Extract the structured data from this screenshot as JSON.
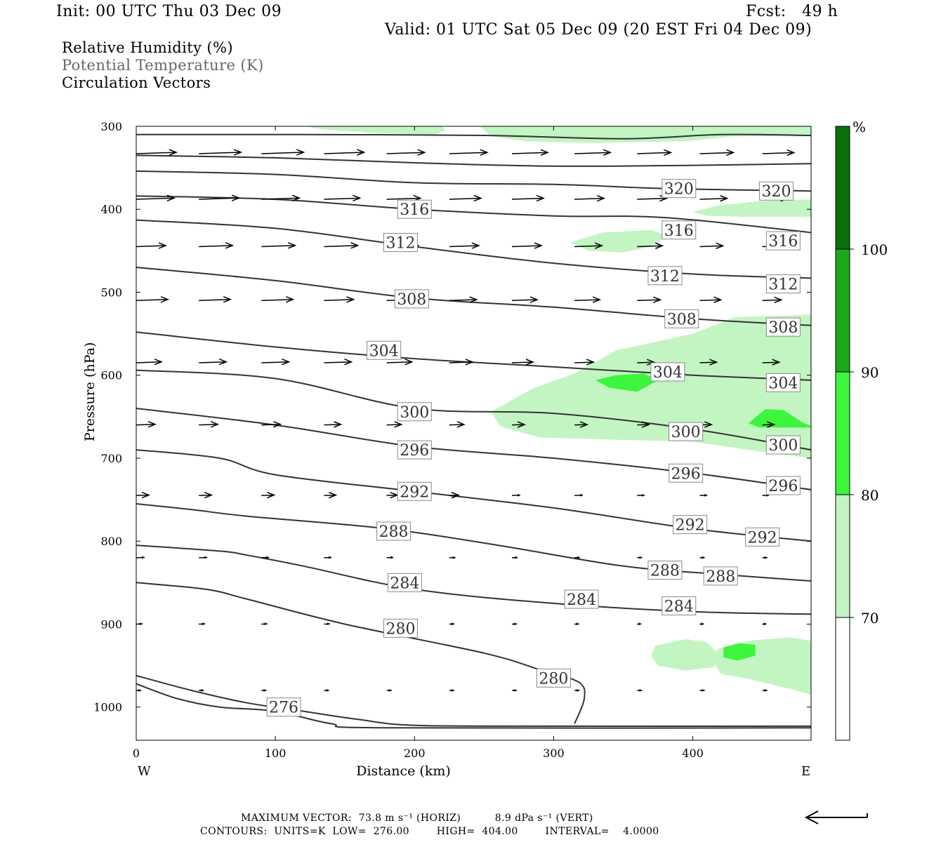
{
  "header": {
    "init": "Init: 00 UTC Thu 03 Dec 09",
    "fcst": "Fcst:   49 h",
    "valid": "Valid: 01 UTC Sat 05 Dec 09 (20 EST Fri 04 Dec 09)"
  },
  "legend": {
    "rh": "Relative Humidity (%)",
    "theta": "Potential Temperature (K)",
    "vectors": "Circulation Vectors"
  },
  "footer": {
    "line1": "MAXIMUM VECTOR:  73.8 m s⁻¹ (HORIZ)          8.9 dPa s⁻¹ (VERT)",
    "line2": "CONTOURS:  UNITS=K  LOW=  276.00        HIGH=  404.00        INTERVAL=    4.0000"
  },
  "colors": {
    "rh_70_80": "#c2f5c2",
    "rh_80_90": "#3df53d",
    "rh_90_100": "#1aa81a",
    "rh_100": "#0a700a",
    "contour": "#333333",
    "label_box": "#888888"
  },
  "chart_data": {
    "type": "contour",
    "xlabel": "Distance (km)",
    "ylabel": "Pressure (hPa)",
    "xlim": [
      0,
      485
    ],
    "ylim": [
      1040,
      300
    ],
    "x_ticks": [
      "0",
      "100",
      "200",
      "300",
      "400"
    ],
    "y_ticks": [
      "300",
      "400",
      "500",
      "600",
      "700",
      "800",
      "900",
      "1000"
    ],
    "x_end_labels": {
      "left": "W",
      "right": "E"
    },
    "colorbar": {
      "unit": "%",
      "levels": [
        "70",
        "80",
        "90",
        "100"
      ],
      "bands": [
        {
          "from": 60,
          "to": 70,
          "color": "#ffffff"
        },
        {
          "from": 70,
          "to": 80,
          "color": "#c2f5c2"
        },
        {
          "from": 80,
          "to": 90,
          "color": "#3df53d"
        },
        {
          "from": 90,
          "to": 100,
          "color": "#1aa81a"
        },
        {
          "from": 100,
          "to": 110,
          "color": "#0a700a"
        }
      ]
    },
    "rh_regions": [
      {
        "level": 70,
        "pts": [
          [
            123,
            300
          ],
          [
            220,
            300
          ],
          [
            222,
            305
          ],
          [
            215,
            310
          ],
          [
            170,
            308
          ],
          [
            130,
            303
          ]
        ]
      },
      {
        "level": 70,
        "pts": [
          [
            247,
            300
          ],
          [
            485,
            300
          ],
          [
            485,
            312
          ],
          [
            430,
            312
          ],
          [
            395,
            318
          ],
          [
            330,
            320
          ],
          [
            280,
            318
          ],
          [
            255,
            312
          ]
        ]
      },
      {
        "level": 70,
        "pts": [
          [
            400,
            403
          ],
          [
            420,
            395
          ],
          [
            450,
            390
          ],
          [
            485,
            388
          ],
          [
            485,
            409
          ],
          [
            440,
            409
          ],
          [
            410,
            408
          ]
        ]
      },
      {
        "level": 70,
        "pts": [
          [
            312,
            440
          ],
          [
            335,
            428
          ],
          [
            370,
            425
          ],
          [
            382,
            432
          ],
          [
            370,
            445
          ],
          [
            350,
            452
          ],
          [
            325,
            450
          ]
        ]
      },
      {
        "level": 70,
        "pts": [
          [
            255,
            644
          ],
          [
            285,
            616
          ],
          [
            315,
            598
          ],
          [
            345,
            570
          ],
          [
            400,
            550
          ],
          [
            430,
            530
          ],
          [
            485,
            527
          ],
          [
            485,
            700
          ],
          [
            440,
            690
          ],
          [
            400,
            680
          ],
          [
            350,
            678
          ],
          [
            290,
            675
          ],
          [
            262,
            662
          ]
        ]
      },
      {
        "level": 80,
        "pts": [
          [
            330,
            606
          ],
          [
            345,
            600
          ],
          [
            365,
            598
          ],
          [
            375,
            606
          ],
          [
            360,
            620
          ],
          [
            340,
            615
          ]
        ]
      },
      {
        "level": 80,
        "pts": [
          [
            440,
            658
          ],
          [
            452,
            641
          ],
          [
            465,
            642
          ],
          [
            480,
            658
          ],
          [
            485,
            661
          ],
          [
            485,
            663
          ],
          [
            448,
            663
          ]
        ]
      },
      {
        "level": 70,
        "pts": [
          [
            373,
            926
          ],
          [
            395,
            918
          ],
          [
            410,
            922
          ],
          [
            420,
            938
          ],
          [
            415,
            952
          ],
          [
            395,
            956
          ],
          [
            375,
            950
          ],
          [
            370,
            938
          ]
        ]
      },
      {
        "level": 70,
        "pts": [
          [
            418,
            930
          ],
          [
            440,
            920
          ],
          [
            470,
            916
          ],
          [
            485,
            920
          ],
          [
            485,
            985
          ],
          [
            470,
            978
          ],
          [
            440,
            966
          ],
          [
            420,
            960
          ],
          [
            415,
            945
          ]
        ]
      },
      {
        "level": 80,
        "pts": [
          [
            422,
            928
          ],
          [
            433,
            923
          ],
          [
            445,
            925
          ],
          [
            445,
            938
          ],
          [
            432,
            944
          ],
          [
            422,
            940
          ]
        ]
      }
    ],
    "theta_isolines": [
      {
        "value": 320,
        "pts": [
          [
            0,
            310
          ],
          [
            120,
            310
          ],
          [
            250,
            311
          ],
          [
            350,
            315
          ],
          [
            420,
            310
          ],
          [
            485,
            311
          ]
        ]
      },
      {
        "value": 320,
        "pts": [
          [
            0,
            335
          ],
          [
            100,
            338
          ],
          [
            200,
            344
          ],
          [
            300,
            348
          ],
          [
            400,
            347
          ],
          [
            485,
            345
          ]
        ]
      },
      {
        "value": 320,
        "pts": [
          [
            0,
            354
          ],
          [
            100,
            358
          ],
          [
            200,
            368
          ],
          [
            300,
            370
          ],
          [
            380,
            375
          ],
          [
            485,
            378
          ]
        ],
        "labels": [
          [
            390,
            375
          ],
          [
            460,
            378
          ]
        ]
      },
      {
        "value": 316,
        "pts": [
          [
            0,
            384
          ],
          [
            100,
            388
          ],
          [
            200,
            400
          ],
          [
            300,
            408
          ],
          [
            380,
            410
          ],
          [
            485,
            428
          ]
        ],
        "labels": [
          [
            200,
            400
          ],
          [
            390,
            425
          ],
          [
            465,
            438
          ]
        ]
      },
      {
        "value": 312,
        "pts": [
          [
            0,
            413
          ],
          [
            100,
            423
          ],
          [
            200,
            445
          ],
          [
            300,
            465
          ],
          [
            400,
            478
          ],
          [
            485,
            483
          ]
        ],
        "labels": [
          [
            190,
            440
          ],
          [
            380,
            480
          ],
          [
            465,
            490
          ]
        ]
      },
      {
        "value": 308,
        "pts": [
          [
            0,
            470
          ],
          [
            100,
            486
          ],
          [
            200,
            507
          ],
          [
            300,
            518
          ],
          [
            400,
            532
          ],
          [
            485,
            540
          ]
        ],
        "labels": [
          [
            198,
            508
          ],
          [
            392,
            532
          ],
          [
            465,
            542
          ]
        ]
      },
      {
        "value": 304,
        "pts": [
          [
            0,
            548
          ],
          [
            100,
            566
          ],
          [
            200,
            580
          ],
          [
            300,
            590
          ],
          [
            400,
            600
          ],
          [
            485,
            606
          ]
        ],
        "labels": [
          [
            178,
            570
          ],
          [
            382,
            596
          ],
          [
            465,
            609
          ]
        ]
      },
      {
        "value": 300,
        "pts": [
          [
            0,
            594
          ],
          [
            100,
            604
          ],
          [
            200,
            640
          ],
          [
            300,
            646
          ],
          [
            400,
            665
          ],
          [
            485,
            690
          ]
        ],
        "labels": [
          [
            200,
            644
          ],
          [
            395,
            668
          ],
          [
            465,
            684
          ]
        ]
      },
      {
        "value": 296,
        "pts": [
          [
            0,
            640
          ],
          [
            100,
            660
          ],
          [
            200,
            686
          ],
          [
            300,
            700
          ],
          [
            400,
            718
          ],
          [
            485,
            738
          ]
        ],
        "labels": [
          [
            200,
            690
          ],
          [
            395,
            718
          ],
          [
            465,
            733
          ]
        ]
      },
      {
        "value": 292,
        "pts": [
          [
            0,
            690
          ],
          [
            60,
            700
          ],
          [
            100,
            720
          ],
          [
            200,
            740
          ],
          [
            300,
            760
          ],
          [
            400,
            785
          ],
          [
            485,
            800
          ]
        ],
        "labels": [
          [
            200,
            740
          ],
          [
            398,
            780
          ],
          [
            450,
            795
          ]
        ]
      },
      {
        "value": 288,
        "pts": [
          [
            0,
            755
          ],
          [
            40,
            762
          ],
          [
            80,
            770
          ],
          [
            180,
            785
          ],
          [
            260,
            805
          ],
          [
            350,
            830
          ],
          [
            420,
            840
          ],
          [
            485,
            848
          ]
        ],
        "labels": [
          [
            185,
            788
          ],
          [
            380,
            835
          ],
          [
            420,
            842
          ]
        ]
      },
      {
        "value": 284,
        "pts": [
          [
            0,
            805
          ],
          [
            60,
            812
          ],
          [
            80,
            817
          ],
          [
            120,
            830
          ],
          [
            200,
            858
          ],
          [
            300,
            875
          ],
          [
            400,
            885
          ],
          [
            485,
            888
          ]
        ],
        "labels": [
          [
            193,
            850
          ],
          [
            320,
            870
          ],
          [
            390,
            878
          ]
        ]
      },
      {
        "value": 280,
        "pts": [
          [
            0,
            850
          ],
          [
            50,
            858
          ],
          [
            80,
            870
          ],
          [
            150,
            900
          ],
          [
            250,
            935
          ],
          [
            290,
            955
          ],
          [
            318,
            970
          ],
          [
            322,
            990
          ],
          [
            315,
            1020
          ]
        ],
        "labels": [
          [
            190,
            905
          ],
          [
            300,
            965
          ]
        ]
      },
      {
        "value": 276,
        "pts": [
          [
            0,
            962
          ],
          [
            40,
            980
          ],
          [
            80,
            995
          ],
          [
            120,
            1005
          ],
          [
            160,
            1015
          ],
          [
            200,
            1022
          ],
          [
            300,
            1023
          ],
          [
            485,
            1023
          ]
        ],
        "labels": [
          [
            106,
            1000
          ]
        ]
      },
      {
        "value": 276,
        "pts": [
          [
            0,
            972
          ],
          [
            30,
            990
          ],
          [
            60,
            1000
          ],
          [
            100,
            1005
          ],
          [
            140,
            1020
          ],
          [
            180,
            1025
          ],
          [
            485,
            1025
          ]
        ]
      }
    ],
    "vectors": {
      "x": [
        0,
        45,
        90,
        135,
        180,
        225,
        270,
        315,
        360,
        405,
        450
      ],
      "rows": [
        {
          "p": 333,
          "u": [
            0.95,
            1.0,
            1.0,
            0.95,
            0.9,
            0.9,
            0.85,
            0.85,
            0.8,
            0.8,
            0.75
          ]
        },
        {
          "p": 388,
          "u": [
            0.9,
            0.95,
            0.9,
            0.85,
            0.8,
            0.75,
            0.75,
            0.7,
            0.7,
            0.65,
            0.6
          ]
        },
        {
          "p": 445,
          "u": [
            0.7,
            0.8,
            0.8,
            0.8,
            0.75,
            0.7,
            0.7,
            0.65,
            0.6,
            0.55,
            0.5
          ]
        },
        {
          "p": 510,
          "u": [
            0.75,
            0.75,
            0.75,
            0.7,
            0.7,
            0.65,
            0.6,
            0.6,
            0.55,
            0.5,
            0.45
          ]
        },
        {
          "p": 585,
          "u": [
            0.6,
            0.65,
            0.65,
            0.65,
            0.6,
            0.55,
            0.5,
            0.45,
            0.4,
            0.4,
            0.4
          ]
        },
        {
          "p": 660,
          "u": [
            0.45,
            0.45,
            0.45,
            0.4,
            0.35,
            0.35,
            0.3,
            0.3,
            0.28,
            0.28,
            0.28
          ]
        },
        {
          "p": 745,
          "u": [
            0.3,
            0.3,
            0.3,
            0.28,
            0.25,
            0.22,
            0.2,
            0.2,
            0.18,
            0.18,
            0.16
          ]
        },
        {
          "p": 820,
          "u": [
            0.2,
            0.2,
            0.18,
            0.18,
            0.16,
            0.15,
            0.14,
            0.13,
            0.12,
            0.12,
            0.12
          ]
        },
        {
          "p": 900,
          "u": [
            0.15,
            0.15,
            0.14,
            0.14,
            0.13,
            0.12,
            0.12,
            0.11,
            0.1,
            0.1,
            0.1
          ]
        },
        {
          "p": 980,
          "u": [
            0.12,
            0.12,
            0.12,
            0.12,
            0.12,
            0.12,
            0.12,
            0.12,
            0.12,
            0.12,
            0.12
          ]
        }
      ]
    }
  }
}
